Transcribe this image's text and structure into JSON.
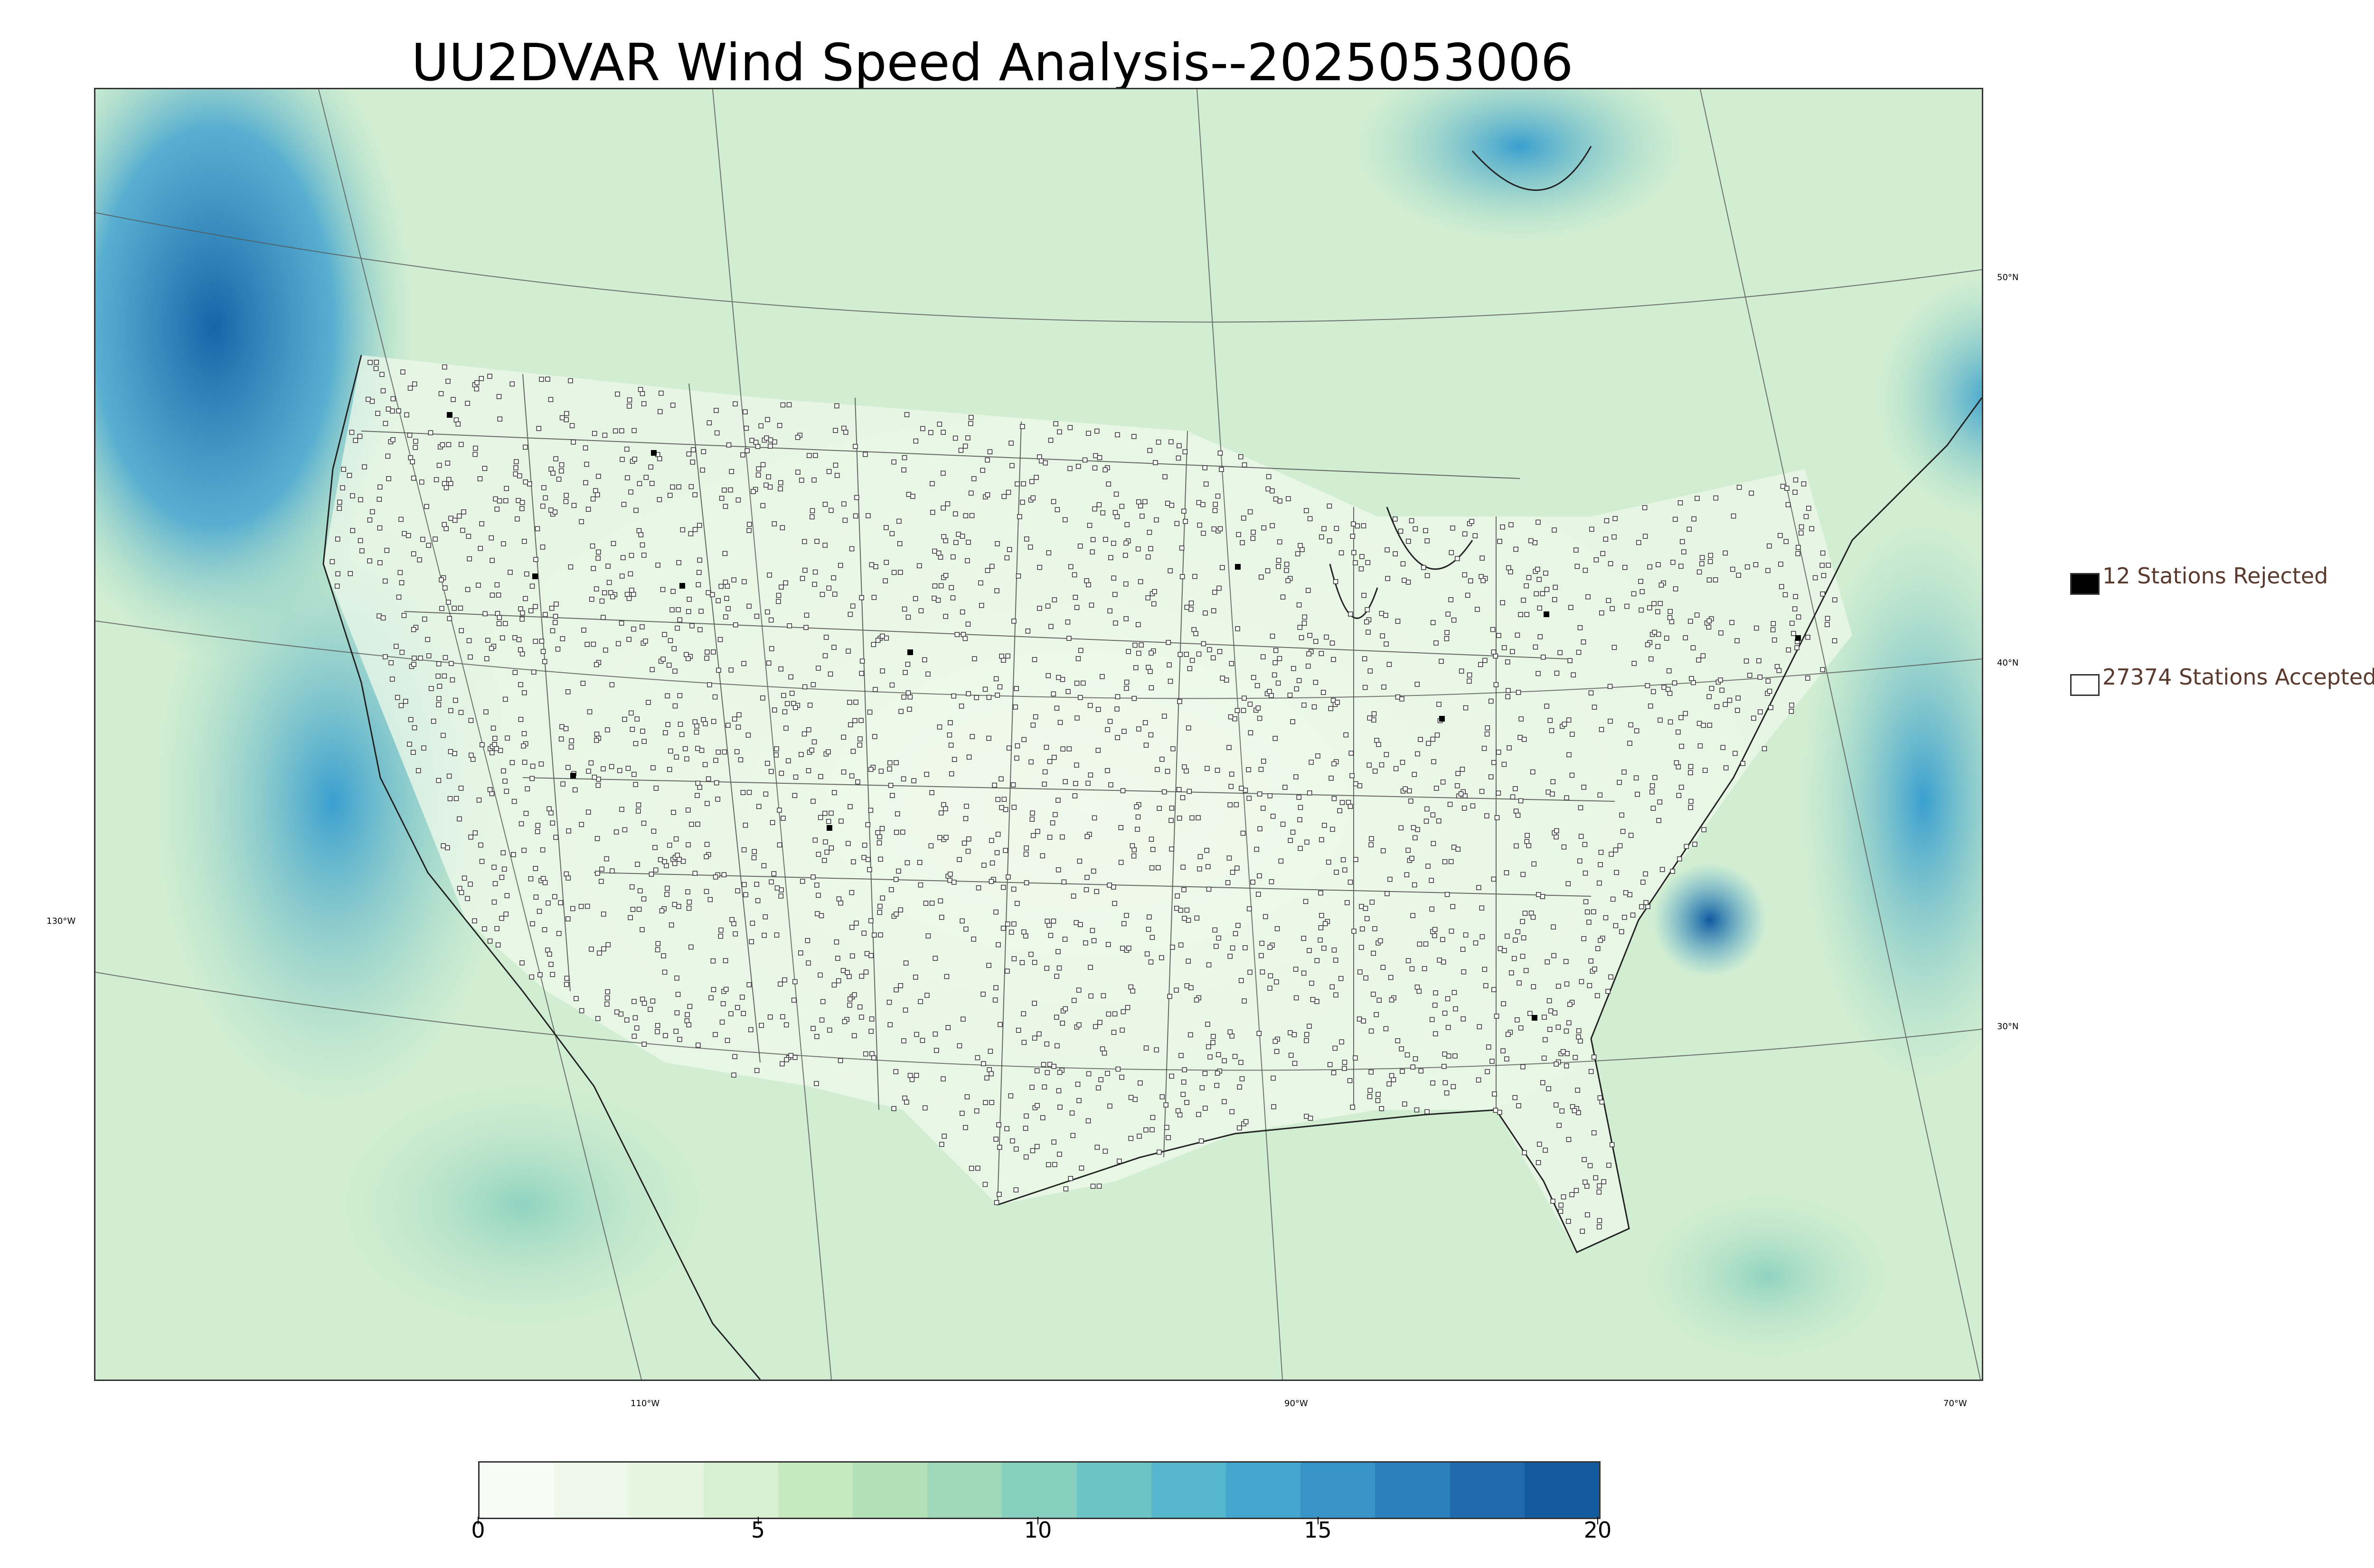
{
  "title": "UU2DVAR Wind Speed Analysis--2025053006",
  "colors": {
    "calm": "#f4fbef",
    "light": "#cdebcb",
    "moderate": "#8fd3c0",
    "strong": "#3a9fd0",
    "max": "#0f5aa0",
    "state_lines": "#555555",
    "station_marker": "#333333",
    "rejected_marker": "#000000"
  },
  "graticule": {
    "lat_labels": [
      "50°N",
      "40°N",
      "30°N"
    ],
    "lon_labels": [
      "130°W",
      "110°W",
      "90°W",
      "70°W"
    ]
  },
  "legend": {
    "rejected": "12 Stations Rejected",
    "accepted": "27374 Stations Accepted"
  },
  "colorbar": {
    "min": 0,
    "max": 20,
    "ticks": [
      "0",
      "5",
      "10",
      "15",
      "20"
    ],
    "levels": [
      "#f7fcf5",
      "#eef8ea",
      "#e5f5e0",
      "#d9f0d3",
      "#c7e9c0",
      "#b3e0b6",
      "#9fd8b8",
      "#87cfbe",
      "#6cc4c4",
      "#56b7cc",
      "#44a5cf",
      "#3893c7",
      "#2c80bb",
      "#206bad",
      "#135a9e"
    ]
  },
  "stations": {
    "accepted_count": 27374,
    "rejected_count": 12
  }
}
